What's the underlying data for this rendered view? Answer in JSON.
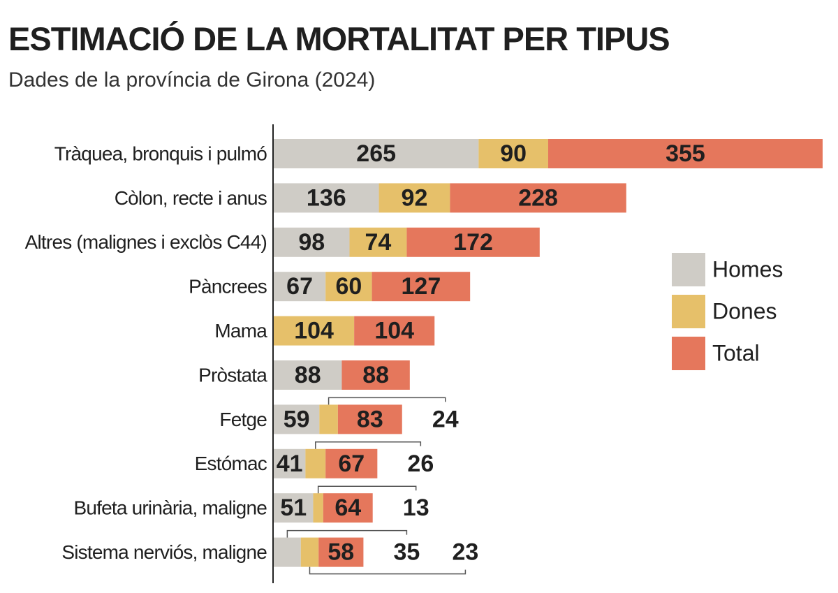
{
  "chart_data": {
    "type": "bar",
    "orientation": "horizontal",
    "stacked": true,
    "title": "ESTIMACIÓ DE LA MORTALITAT PER TIPUS",
    "subtitle": "Dades de la província de Girona (2024)",
    "categories": [
      "Tràquea, bronquis i pulmó",
      "Còlon, recte i anus",
      "Altres (malignes i exclòs C44)",
      "Pàncrees",
      "Mama",
      "Pròstata",
      "Fetge",
      "Estómac",
      "Bufeta urinària, maligne",
      "Sistema nerviós, maligne"
    ],
    "series": [
      {
        "name": "Homes",
        "color": "#cfccc6",
        "values": [
          265,
          136,
          98,
          67,
          null,
          88,
          59,
          41,
          51,
          35
        ]
      },
      {
        "name": "Dones",
        "color": "#e6c06a",
        "values": [
          90,
          92,
          74,
          60,
          104,
          null,
          24,
          26,
          13,
          23
        ]
      },
      {
        "name": "Total",
        "color": "#e5775c",
        "values": [
          355,
          228,
          172,
          127,
          104,
          88,
          83,
          67,
          64,
          58
        ]
      }
    ],
    "legend": "right"
  }
}
